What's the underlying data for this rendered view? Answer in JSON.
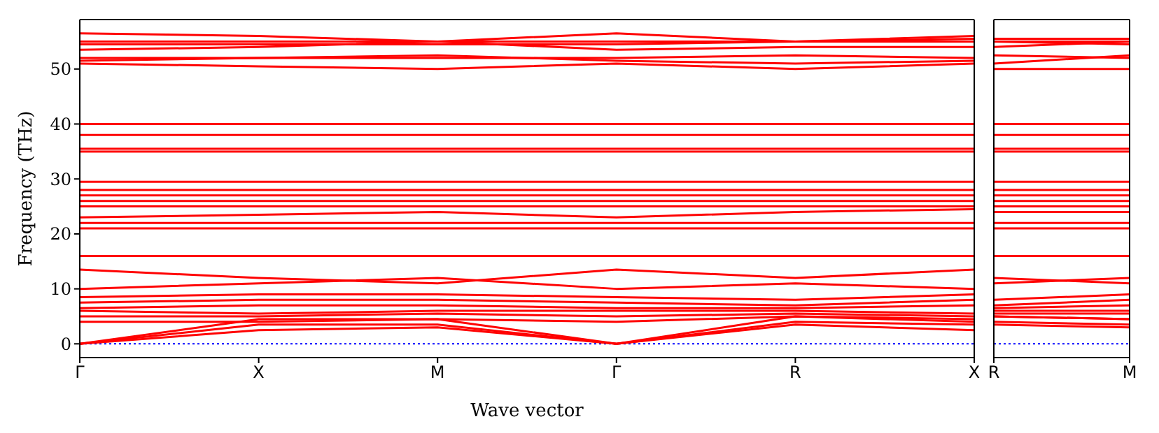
{
  "chart_data": [
    {
      "type": "line",
      "xlabel": "Wave vector",
      "ylabel": "Frequency (THz)",
      "categories": [
        "Γ",
        "X",
        "M",
        "Γ",
        "R",
        "X"
      ],
      "ylim": [
        -2.5,
        59
      ],
      "yticks": [
        0,
        10,
        20,
        30,
        40,
        50
      ],
      "ref_lines": [
        {
          "axis": "y",
          "value": 0,
          "color": "#0000ff",
          "line_style": "dotted"
        }
      ],
      "series": [
        {
          "color": "#ff0000",
          "values": [
            0,
            2.5,
            3,
            0,
            3.5,
            2.5
          ]
        },
        {
          "color": "#ff0000",
          "values": [
            0,
            3.5,
            3.5,
            0,
            4,
            3.5
          ]
        },
        {
          "color": "#ff0000",
          "values": [
            0,
            4.5,
            4.5,
            0,
            5,
            4.5
          ]
        },
        {
          "color": "#ff0000",
          "values": [
            4,
            4,
            4.5,
            4,
            5,
            4
          ]
        },
        {
          "color": "#ff0000",
          "values": [
            5,
            5,
            5.5,
            5,
            5.5,
            5
          ]
        },
        {
          "color": "#ff0000",
          "values": [
            6,
            5.5,
            6,
            6,
            6,
            5.5
          ]
        },
        {
          "color": "#ff0000",
          "values": [
            6.5,
            7,
            7,
            6.5,
            6.5,
            7
          ]
        },
        {
          "color": "#ff0000",
          "values": [
            7.5,
            8,
            8,
            7.5,
            7,
            8
          ]
        },
        {
          "color": "#ff0000",
          "values": [
            8.5,
            9,
            9,
            8.5,
            8,
            9
          ]
        },
        {
          "color": "#ff0000",
          "values": [
            10,
            11,
            12,
            10,
            11,
            10
          ]
        },
        {
          "color": "#ff0000",
          "values": [
            13.5,
            12,
            11,
            13.5,
            12,
            13.5
          ]
        },
        {
          "color": "#ff0000",
          "values": [
            16,
            16,
            16,
            16,
            16,
            16
          ]
        },
        {
          "color": "#ff0000",
          "values": [
            21,
            21,
            21,
            21,
            21,
            21
          ]
        },
        {
          "color": "#ff0000",
          "values": [
            22,
            22,
            22,
            22,
            22,
            22
          ]
        },
        {
          "color": "#ff0000",
          "values": [
            23,
            23.5,
            24,
            23,
            24,
            24.5
          ]
        },
        {
          "color": "#ff0000",
          "values": [
            25,
            25,
            25,
            25,
            25,
            25
          ]
        },
        {
          "color": "#ff0000",
          "values": [
            26,
            26,
            26,
            26,
            26,
            26
          ]
        },
        {
          "color": "#ff0000",
          "values": [
            27,
            27,
            27,
            27,
            27,
            27
          ]
        },
        {
          "color": "#ff0000",
          "values": [
            28,
            28,
            28,
            28,
            28,
            28
          ]
        },
        {
          "color": "#ff0000",
          "values": [
            29.5,
            29.5,
            29.5,
            29.5,
            29.5,
            29.5
          ]
        },
        {
          "color": "#ff0000",
          "values": [
            35,
            35,
            35,
            35,
            35,
            35
          ]
        },
        {
          "color": "#ff0000",
          "values": [
            35.5,
            35.5,
            35.5,
            35.5,
            35.5,
            35.5
          ]
        },
        {
          "color": "#ff0000",
          "values": [
            38,
            38,
            38,
            38,
            38,
            38
          ]
        },
        {
          "color": "#ff0000",
          "values": [
            40,
            40,
            40,
            40,
            40,
            40
          ]
        },
        {
          "color": "#ff0000",
          "values": [
            51,
            50.5,
            50,
            51,
            50,
            51
          ]
        },
        {
          "color": "#ff0000",
          "values": [
            51.5,
            52,
            52.5,
            51.5,
            51,
            51.5
          ]
        },
        {
          "color": "#ff0000",
          "values": [
            52,
            52,
            52,
            52,
            52.5,
            52
          ]
        },
        {
          "color": "#ff0000",
          "values": [
            53.5,
            54,
            55,
            53.5,
            54,
            54
          ]
        },
        {
          "color": "#ff0000",
          "values": [
            54.5,
            54.5,
            54.5,
            54.5,
            55,
            55
          ]
        },
        {
          "color": "#ff0000",
          "values": [
            55,
            55,
            55,
            55,
            55,
            55.5
          ]
        },
        {
          "color": "#ff0000",
          "values": [
            56.5,
            56,
            55,
            56.5,
            55,
            56
          ]
        }
      ]
    },
    {
      "type": "line",
      "categories": [
        "R",
        "M"
      ],
      "ylim": [
        -2.5,
        59
      ],
      "yticks": [
        0,
        10,
        20,
        30,
        40,
        50
      ],
      "tick_labels": "x",
      "ref_lines": [
        {
          "axis": "y",
          "value": 0,
          "color": "#0000ff",
          "line_style": "dotted"
        }
      ],
      "series": [
        {
          "color": "#ff0000",
          "values": [
            3.5,
            3
          ]
        },
        {
          "color": "#ff0000",
          "values": [
            4,
            3.5
          ]
        },
        {
          "color": "#ff0000",
          "values": [
            5,
            4.5
          ]
        },
        {
          "color": "#ff0000",
          "values": [
            5,
            4.5
          ]
        },
        {
          "color": "#ff0000",
          "values": [
            5.5,
            5.5
          ]
        },
        {
          "color": "#ff0000",
          "values": [
            6,
            6
          ]
        },
        {
          "color": "#ff0000",
          "values": [
            6.5,
            7
          ]
        },
        {
          "color": "#ff0000",
          "values": [
            7,
            8
          ]
        },
        {
          "color": "#ff0000",
          "values": [
            8,
            9
          ]
        },
        {
          "color": "#ff0000",
          "values": [
            11,
            12
          ]
        },
        {
          "color": "#ff0000",
          "values": [
            12,
            11
          ]
        },
        {
          "color": "#ff0000",
          "values": [
            16,
            16
          ]
        },
        {
          "color": "#ff0000",
          "values": [
            21,
            21
          ]
        },
        {
          "color": "#ff0000",
          "values": [
            22,
            22
          ]
        },
        {
          "color": "#ff0000",
          "values": [
            24,
            24
          ]
        },
        {
          "color": "#ff0000",
          "values": [
            25,
            25
          ]
        },
        {
          "color": "#ff0000",
          "values": [
            26,
            26
          ]
        },
        {
          "color": "#ff0000",
          "values": [
            27,
            27
          ]
        },
        {
          "color": "#ff0000",
          "values": [
            28,
            28
          ]
        },
        {
          "color": "#ff0000",
          "values": [
            29.5,
            29.5
          ]
        },
        {
          "color": "#ff0000",
          "values": [
            35,
            35
          ]
        },
        {
          "color": "#ff0000",
          "values": [
            35.5,
            35.5
          ]
        },
        {
          "color": "#ff0000",
          "values": [
            38,
            38
          ]
        },
        {
          "color": "#ff0000",
          "values": [
            40,
            40
          ]
        },
        {
          "color": "#ff0000",
          "values": [
            50,
            50
          ]
        },
        {
          "color": "#ff0000",
          "values": [
            51,
            52.5
          ]
        },
        {
          "color": "#ff0000",
          "values": [
            52.5,
            52
          ]
        },
        {
          "color": "#ff0000",
          "values": [
            54,
            55
          ]
        },
        {
          "color": "#ff0000",
          "values": [
            55,
            54.5
          ]
        },
        {
          "color": "#ff0000",
          "values": [
            55,
            55
          ]
        },
        {
          "color": "#ff0000",
          "values": [
            55.5,
            55.5
          ]
        }
      ]
    }
  ]
}
